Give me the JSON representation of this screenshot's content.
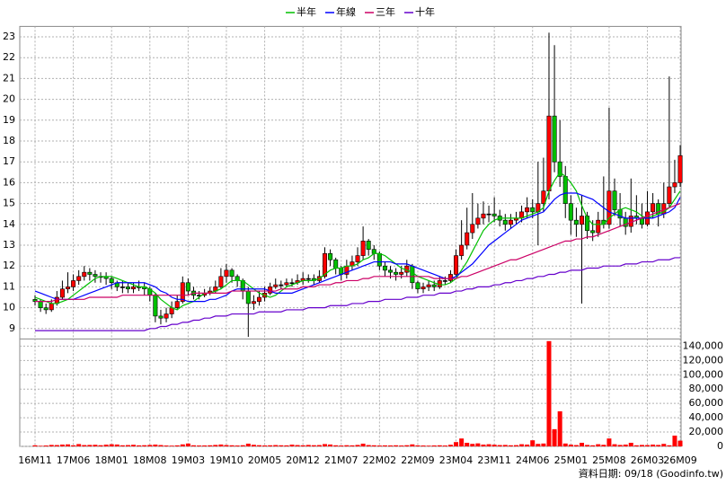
{
  "chart_data": {
    "type": "candlestick",
    "legend": "top",
    "grid": true,
    "note": "資料日期: 09/18 (Goodinfo.tw)",
    "up_color": "#ff0000",
    "down_color": "#00c000",
    "categories": [
      "16M11",
      null,
      null,
      null,
      null,
      null,
      null,
      "17M06",
      null,
      null,
      null,
      null,
      null,
      null,
      "18M01",
      null,
      null,
      null,
      null,
      null,
      null,
      "18M08",
      null,
      null,
      null,
      null,
      null,
      null,
      "19M03",
      null,
      null,
      null,
      null,
      null,
      null,
      "19M10",
      null,
      null,
      null,
      null,
      null,
      null,
      "20M05",
      null,
      null,
      null,
      null,
      null,
      null,
      "20M12",
      null,
      null,
      null,
      null,
      null,
      null,
      "21M07",
      null,
      null,
      null,
      null,
      null,
      null,
      "22M02",
      null,
      null,
      null,
      null,
      null,
      null,
      "22M09",
      null,
      null,
      null,
      null,
      null,
      null,
      "23M04",
      null,
      null,
      null,
      null,
      null,
      null,
      "23M11",
      null,
      null,
      null,
      null,
      null,
      null,
      "24M06",
      null,
      null,
      null,
      null,
      null,
      null,
      "25M01",
      null,
      null,
      null,
      null,
      null,
      null,
      "25M08",
      null,
      null,
      null,
      null,
      null,
      null,
      "26M03",
      null,
      null,
      null,
      null,
      null,
      "26M09"
    ],
    "open": [
      10.4,
      10.3,
      10.0,
      9.9,
      10.2,
      10.5,
      10.9,
      11.0,
      11.3,
      11.5,
      11.7,
      11.6,
      11.5,
      11.5,
      11.4,
      11.2,
      11.0,
      11.0,
      10.9,
      11.0,
      11.0,
      10.9,
      10.6,
      9.6,
      9.5,
      9.7,
      10.0,
      10.3,
      11.2,
      10.8,
      10.6,
      10.6,
      10.7,
      10.8,
      11.0,
      11.5,
      11.8,
      11.5,
      11.3,
      10.8,
      10.2,
      10.3,
      10.5,
      10.7,
      11.0,
      11.1,
      11.1,
      11.2,
      11.2,
      11.3,
      11.4,
      11.4,
      11.3,
      11.5,
      12.6,
      12.3,
      11.9,
      11.6,
      12.0,
      12.2,
      12.5,
      13.2,
      12.8,
      12.6,
      12.0,
      11.8,
      11.7,
      11.6,
      11.7,
      12.0,
      11.2,
      10.9,
      11.0,
      11.1,
      11.0,
      11.3,
      11.3,
      11.6,
      12.5,
      13.0,
      13.6,
      14.0,
      14.3,
      14.5,
      14.5,
      14.4,
      14.2,
      14.0,
      14.2,
      14.3,
      14.6,
      14.8,
      14.6,
      15.0,
      15.6,
      19.2,
      17.0,
      16.3,
      15.0,
      14.2,
      14.0,
      14.4,
      13.7,
      13.6,
      14.2,
      14.0,
      15.6,
      14.7,
      14.3,
      13.9,
      14.4,
      14.3,
      14.0,
      14.6,
      15.0,
      14.5,
      15.0,
      15.8,
      16.0
    ],
    "high": [
      10.6,
      10.4,
      10.2,
      10.4,
      10.8,
      11.3,
      11.7,
      11.6,
      11.8,
      12.0,
      11.9,
      11.8,
      11.7,
      11.7,
      11.5,
      11.3,
      11.3,
      11.2,
      11.2,
      11.3,
      11.2,
      11.0,
      10.7,
      9.9,
      10.0,
      10.3,
      10.6,
      11.5,
      11.4,
      11.0,
      10.8,
      10.9,
      11.0,
      11.3,
      11.9,
      12.1,
      11.9,
      11.6,
      11.4,
      11.0,
      10.6,
      10.8,
      11.0,
      11.2,
      11.4,
      11.3,
      11.4,
      11.4,
      11.6,
      11.7,
      11.6,
      11.6,
      11.8,
      12.9,
      12.8,
      12.4,
      12.0,
      12.3,
      12.5,
      12.9,
      13.9,
      13.3,
      13.0,
      12.7,
      12.2,
      12.0,
      11.9,
      12.0,
      12.3,
      12.1,
      11.3,
      11.2,
      11.3,
      11.3,
      11.5,
      11.5,
      11.8,
      12.8,
      14.2,
      14.8,
      15.5,
      15.0,
      15.1,
      14.9,
      15.3,
      14.7,
      14.5,
      14.5,
      14.6,
      14.9,
      15.3,
      15.2,
      17.0,
      17.2,
      23.2,
      22.6,
      19.0,
      16.8,
      15.4,
      14.8,
      15.4,
      14.6,
      14.2,
      14.6,
      16.3,
      19.6,
      16.2,
      15.5,
      14.6,
      16.2,
      15.4,
      15.0,
      15.6,
      15.5,
      15.2,
      16.0,
      21.1,
      17.1,
      17.8
    ],
    "low": [
      10.1,
      9.8,
      9.7,
      9.8,
      10.1,
      10.4,
      10.7,
      10.8,
      11.1,
      11.3,
      11.3,
      11.2,
      11.2,
      11.1,
      10.9,
      10.8,
      10.7,
      10.7,
      10.7,
      10.8,
      10.6,
      10.3,
      9.3,
      9.2,
      9.3,
      9.5,
      9.9,
      10.2,
      10.6,
      10.4,
      10.4,
      10.5,
      10.6,
      10.7,
      10.9,
      11.2,
      11.2,
      11.0,
      10.4,
      8.6,
      9.9,
      10.1,
      10.3,
      10.6,
      10.9,
      10.9,
      11.0,
      11.0,
      11.1,
      11.1,
      11.2,
      11.1,
      11.2,
      11.4,
      12.0,
      11.6,
      11.3,
      11.4,
      11.8,
      12.0,
      12.3,
      12.5,
      12.3,
      11.8,
      11.5,
      11.4,
      11.3,
      11.4,
      11.5,
      10.9,
      10.7,
      10.7,
      10.8,
      10.8,
      10.9,
      11.1,
      11.2,
      11.5,
      12.3,
      12.8,
      13.3,
      13.8,
      14.0,
      14.1,
      14.1,
      13.9,
      13.7,
      13.8,
      14.0,
      14.1,
      14.3,
      14.3,
      13.0,
      14.6,
      15.2,
      16.5,
      15.8,
      14.3,
      13.5,
      13.4,
      10.2,
      13.3,
      13.2,
      13.4,
      13.8,
      13.8,
      14.4,
      13.9,
      13.5,
      13.6,
      14.0,
      13.8,
      13.9,
      14.3,
      13.9,
      14.3,
      14.8,
      15.5,
      15.8
    ],
    "close": [
      10.3,
      10.0,
      9.9,
      10.2,
      10.5,
      10.9,
      11.0,
      11.3,
      11.5,
      11.7,
      11.6,
      11.5,
      11.5,
      11.4,
      11.2,
      11.0,
      11.0,
      10.9,
      11.0,
      11.0,
      10.9,
      10.6,
      9.6,
      9.5,
      9.7,
      10.0,
      10.3,
      11.2,
      10.8,
      10.6,
      10.6,
      10.7,
      10.8,
      11.0,
      11.5,
      11.8,
      11.5,
      11.3,
      10.8,
      10.2,
      10.3,
      10.5,
      10.7,
      11.0,
      11.1,
      11.1,
      11.2,
      11.2,
      11.3,
      11.4,
      11.4,
      11.3,
      11.5,
      12.6,
      12.3,
      11.9,
      11.6,
      12.0,
      12.2,
      12.5,
      13.2,
      12.8,
      12.6,
      12.0,
      11.8,
      11.7,
      11.6,
      11.7,
      12.0,
      11.2,
      10.9,
      11.0,
      11.1,
      11.0,
      11.3,
      11.3,
      11.6,
      12.5,
      13.0,
      13.6,
      14.0,
      14.3,
      14.5,
      14.5,
      14.4,
      14.2,
      14.0,
      14.2,
      14.3,
      14.6,
      14.8,
      14.6,
      15.0,
      15.6,
      19.2,
      17.0,
      16.3,
      15.0,
      14.2,
      14.0,
      14.4,
      13.7,
      13.6,
      14.2,
      14.0,
      15.6,
      14.7,
      14.3,
      13.9,
      14.4,
      14.3,
      14.0,
      14.6,
      15.0,
      14.5,
      15.0,
      15.8,
      16.0,
      17.3
    ],
    "series": [
      {
        "name": "半年",
        "color": "#00c000",
        "values": [
          10.5,
          10.4,
          10.3,
          10.2,
          10.2,
          10.3,
          10.4,
          10.6,
          10.8,
          11.0,
          11.2,
          11.4,
          11.5,
          11.5,
          11.5,
          11.4,
          11.3,
          11.2,
          11.1,
          11.0,
          11.0,
          10.9,
          10.7,
          10.4,
          10.2,
          10.0,
          9.9,
          10.1,
          10.2,
          10.3,
          10.5,
          10.7,
          10.7,
          10.8,
          10.9,
          11.1,
          11.3,
          11.3,
          11.3,
          11.1,
          10.9,
          10.7,
          10.6,
          10.5,
          10.6,
          10.8,
          11.0,
          11.1,
          11.2,
          11.3,
          11.3,
          11.3,
          11.4,
          11.6,
          11.8,
          11.9,
          11.9,
          12.0,
          12.0,
          12.1,
          12.3,
          12.4,
          12.6,
          12.6,
          12.5,
          12.3,
          12.1,
          11.9,
          11.8,
          11.7,
          11.5,
          11.4,
          11.3,
          11.2,
          11.1,
          11.1,
          11.2,
          11.4,
          11.8,
          12.2,
          12.7,
          13.2,
          13.7,
          14.0,
          14.2,
          14.3,
          14.3,
          14.3,
          14.3,
          14.3,
          14.4,
          14.5,
          14.6,
          14.8,
          15.6,
          16.1,
          16.5,
          16.3,
          16.0,
          15.6,
          14.9,
          14.3,
          14.0,
          14.0,
          14.0,
          14.3,
          14.5,
          14.7,
          14.8,
          14.7,
          14.6,
          14.4,
          14.3,
          14.4,
          14.5,
          14.6,
          14.8,
          15.2,
          15.6
        ]
      },
      {
        "name": "年線",
        "color": "#0000ff",
        "values": [
          10.8,
          10.7,
          10.6,
          10.5,
          10.4,
          10.4,
          10.4,
          10.4,
          10.5,
          10.6,
          10.7,
          10.8,
          10.9,
          11.0,
          11.1,
          11.2,
          11.2,
          11.2,
          11.2,
          11.2,
          11.2,
          11.1,
          11.0,
          10.8,
          10.7,
          10.5,
          10.4,
          10.4,
          10.3,
          10.3,
          10.3,
          10.3,
          10.4,
          10.4,
          10.5,
          10.6,
          10.8,
          10.9,
          10.9,
          10.9,
          10.9,
          10.9,
          10.9,
          10.8,
          10.7,
          10.7,
          10.7,
          10.7,
          10.8,
          10.9,
          11.0,
          11.1,
          11.2,
          11.3,
          11.4,
          11.5,
          11.6,
          11.7,
          11.8,
          11.9,
          12.0,
          12.1,
          12.2,
          12.2,
          12.2,
          12.2,
          12.1,
          12.1,
          12.1,
          12.0,
          11.9,
          11.8,
          11.7,
          11.6,
          11.5,
          11.4,
          11.4,
          11.5,
          11.7,
          11.9,
          12.1,
          12.4,
          12.7,
          13.0,
          13.2,
          13.4,
          13.6,
          13.8,
          14.0,
          14.2,
          14.3,
          14.4,
          14.5,
          14.6,
          14.9,
          15.2,
          15.4,
          15.5,
          15.5,
          15.5,
          15.4,
          15.3,
          15.2,
          15.0,
          14.8,
          14.6,
          14.5,
          14.4,
          14.3,
          14.3,
          14.3,
          14.3,
          14.3,
          14.3,
          14.4,
          14.5,
          14.6,
          14.8,
          15.3
        ]
      },
      {
        "name": "三年",
        "color": "#cc0066",
        "values": [
          10.3,
          10.3,
          10.3,
          10.3,
          10.4,
          10.4,
          10.4,
          10.4,
          10.4,
          10.4,
          10.5,
          10.5,
          10.5,
          10.5,
          10.5,
          10.5,
          10.6,
          10.6,
          10.6,
          10.6,
          10.6,
          10.6,
          10.6,
          10.6,
          10.6,
          10.6,
          10.6,
          10.6,
          10.6,
          10.7,
          10.7,
          10.7,
          10.7,
          10.7,
          10.7,
          10.7,
          10.8,
          10.8,
          10.8,
          10.8,
          10.8,
          10.8,
          10.8,
          10.8,
          10.8,
          10.9,
          10.9,
          10.9,
          10.9,
          11.0,
          11.0,
          11.0,
          11.1,
          11.1,
          11.1,
          11.2,
          11.2,
          11.3,
          11.3,
          11.3,
          11.4,
          11.4,
          11.5,
          11.5,
          11.5,
          11.5,
          11.5,
          11.5,
          11.5,
          11.5,
          11.5,
          11.5,
          11.5,
          11.4,
          11.4,
          11.4,
          11.4,
          11.4,
          11.5,
          11.5,
          11.6,
          11.7,
          11.8,
          11.9,
          12.0,
          12.1,
          12.2,
          12.3,
          12.3,
          12.4,
          12.5,
          12.6,
          12.7,
          12.8,
          12.9,
          13.0,
          13.1,
          13.2,
          13.2,
          13.3,
          13.3,
          13.4,
          13.4,
          13.5,
          13.6,
          13.7,
          13.8,
          13.9,
          14.0,
          14.1,
          14.2,
          14.3,
          14.4,
          14.5,
          14.6,
          14.7,
          14.8,
          14.9,
          15.0
        ]
      },
      {
        "name": "十年",
        "color": "#6600cc",
        "values": [
          8.9,
          8.9,
          8.9,
          8.9,
          8.9,
          8.9,
          8.9,
          8.9,
          8.9,
          8.9,
          8.9,
          8.9,
          8.9,
          8.9,
          8.9,
          8.9,
          8.9,
          8.9,
          8.9,
          8.9,
          8.9,
          9.0,
          9.0,
          9.1,
          9.1,
          9.2,
          9.2,
          9.3,
          9.3,
          9.4,
          9.4,
          9.5,
          9.5,
          9.6,
          9.6,
          9.6,
          9.7,
          9.7,
          9.7,
          9.7,
          9.7,
          9.8,
          9.8,
          9.8,
          9.8,
          9.8,
          9.9,
          9.9,
          9.9,
          9.9,
          10.0,
          10.0,
          10.0,
          10.0,
          10.1,
          10.1,
          10.1,
          10.1,
          10.2,
          10.2,
          10.2,
          10.3,
          10.3,
          10.3,
          10.4,
          10.4,
          10.4,
          10.4,
          10.5,
          10.5,
          10.5,
          10.6,
          10.6,
          10.6,
          10.7,
          10.7,
          10.7,
          10.8,
          10.8,
          10.9,
          10.9,
          11.0,
          11.0,
          11.0,
          11.1,
          11.1,
          11.2,
          11.2,
          11.3,
          11.3,
          11.4,
          11.4,
          11.5,
          11.5,
          11.6,
          11.6,
          11.7,
          11.7,
          11.8,
          11.8,
          11.8,
          11.9,
          11.9,
          11.9,
          12.0,
          12.0,
          12.0,
          12.0,
          12.1,
          12.1,
          12.1,
          12.2,
          12.2,
          12.2,
          12.3,
          12.3,
          12.3,
          12.4,
          12.4
        ]
      }
    ],
    "ylim": [
      8.5,
      23.5
    ],
    "yticks": [
      9,
      10,
      11,
      12,
      13,
      14,
      15,
      16,
      17,
      18,
      19,
      20,
      21,
      22,
      23
    ],
    "volume": {
      "color": "#ff0000",
      "values": [
        1500,
        800,
        1200,
        2000,
        1800,
        2500,
        2800,
        1500,
        3200,
        1800,
        2000,
        2200,
        1600,
        2400,
        3000,
        2600,
        1500,
        1800,
        2200,
        1400,
        1600,
        2000,
        2500,
        1800,
        1200,
        1000,
        1400,
        2800,
        4000,
        1500,
        1200,
        1300,
        1500,
        2000,
        2600,
        1800,
        1500,
        1200,
        1600,
        3800,
        2200,
        1600,
        1300,
        1500,
        1800,
        1500,
        1400,
        2400,
        1800,
        1500,
        2000,
        1600,
        1800,
        3200,
        2600,
        1500,
        1200,
        1600,
        1400,
        2000,
        3800,
        1800,
        1500,
        1200,
        1400,
        1300,
        1500,
        1200,
        1600,
        2800,
        1400,
        1200,
        1000,
        1300,
        1500,
        1200,
        2200,
        6000,
        11000,
        5000,
        3500,
        4200,
        2500,
        3000,
        2400,
        1800,
        2000,
        1500,
        1700,
        3000,
        2500,
        8500,
        3500,
        4000,
        147000,
        24000,
        49000,
        4000,
        2500,
        1800,
        5000,
        2000,
        1500,
        3000,
        2200,
        11000,
        3000,
        2000,
        2500,
        5000,
        1500,
        2000,
        1800,
        2500,
        2000,
        3500,
        1500,
        15000,
        8000
      ],
      "ylim": [
        0,
        150000
      ],
      "yticks": [
        0,
        {
          "value": 20000,
          "label": "20,000"
        },
        {
          "value": 40000,
          "label": "40,000"
        },
        {
          "value": 60000,
          "label": "60,000"
        },
        {
          "value": 80000,
          "label": "80,000"
        },
        {
          "value": 100000,
          "label": "100,000"
        },
        {
          "value": 120000,
          "label": "120,000"
        },
        {
          "value": 140000,
          "label": "140,000"
        }
      ]
    }
  }
}
